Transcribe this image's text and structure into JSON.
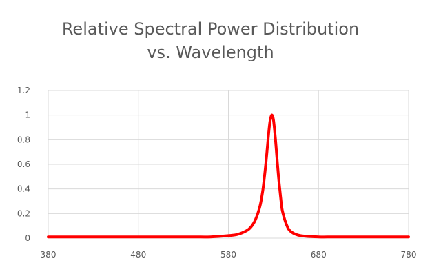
{
  "chart_data": {
    "type": "line",
    "title_line1": "Relative Spectral Power Distribution",
    "title_line2": "vs. Wavelength",
    "xlabel": "",
    "ylabel": "",
    "xlim": [
      380,
      780
    ],
    "ylim": [
      0,
      1.2
    ],
    "x_ticks": [
      380,
      480,
      580,
      680,
      780
    ],
    "y_ticks": [
      0,
      0.2,
      0.4,
      0.6,
      0.8,
      1,
      1.2
    ],
    "grid": true,
    "series": [
      {
        "color": "#ff0000",
        "x": [
          380,
          400,
          450,
          500,
          540,
          560,
          580,
          590,
          600,
          605,
          610,
          615,
          618,
          620,
          622,
          624,
          626,
          628,
          630,
          632,
          634,
          636,
          638,
          640,
          645,
          650,
          660,
          680,
          700,
          750,
          780
        ],
        "y": [
          0.01,
          0.01,
          0.01,
          0.01,
          0.01,
          0.01,
          0.02,
          0.03,
          0.06,
          0.09,
          0.15,
          0.26,
          0.38,
          0.5,
          0.64,
          0.8,
          0.94,
          1.0,
          0.96,
          0.82,
          0.64,
          0.47,
          0.33,
          0.22,
          0.1,
          0.05,
          0.02,
          0.01,
          0.01,
          0.01,
          0.01
        ]
      }
    ]
  }
}
